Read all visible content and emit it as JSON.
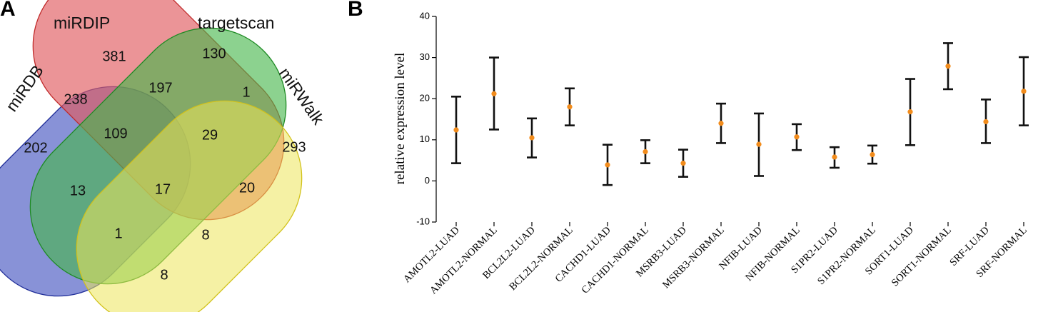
{
  "panels": {
    "a_label": "A",
    "b_label": "B"
  },
  "venn": {
    "sets": [
      {
        "name": "miRDB",
        "color": "#4f5fc4"
      },
      {
        "name": "miRDIP",
        "color": "#e05a60"
      },
      {
        "name": "targetscan",
        "color": "#45b64a"
      },
      {
        "name": "miRWalk",
        "color": "#ede65a"
      }
    ],
    "regions": [
      {
        "sets": "miRDIP",
        "count": "381"
      },
      {
        "sets": "targetscan",
        "count": "130"
      },
      {
        "sets": "miRDB+miRDIP",
        "count": "238"
      },
      {
        "sets": "miRDIP+targetscan",
        "count": "197"
      },
      {
        "sets": "targetscan+miRWalk",
        "count": "1"
      },
      {
        "sets": "miRDB",
        "count": "202"
      },
      {
        "sets": "miRDB+miRDIP+targetscan",
        "count": "109"
      },
      {
        "sets": "miRDIP+targetscan+miRWalk",
        "count": "29"
      },
      {
        "sets": "miRWalk",
        "count": "293"
      },
      {
        "sets": "miRDB+targetscan",
        "count": "13"
      },
      {
        "sets": "miRDB+miRDIP+targetscan+miRWalk",
        "count": "17"
      },
      {
        "sets": "miRDIP+miRWalk",
        "count": "20"
      },
      {
        "sets": "miRDB+targetscan+miRWalk",
        "count": "1"
      },
      {
        "sets": "miRDB+miRDIP+miRWalk",
        "count": "8"
      },
      {
        "sets": "miRDB+miRWalk",
        "count": "8"
      }
    ]
  },
  "chart_data": {
    "type": "scatter",
    "title": "",
    "xlabel": "",
    "ylabel": "relative expression level",
    "ylim": [
      -10,
      40
    ],
    "yticks": [
      -10,
      0,
      10,
      20,
      30,
      40
    ],
    "grid": false,
    "marker_color": "#f28c1c",
    "errorbar_color": "#111111",
    "categories": [
      "AMOTL2-LUAD",
      "AMOTL2-NORMAL",
      "BCL2L2-LUAD",
      "BCL2L2-NORMAL",
      "CACHD1-LUAD",
      "CACHD1-NORMAL",
      "MSRB3-LUAD",
      "MSRB3-NORMAL",
      "NFIB-LUAD",
      "NFIB-NORMAL",
      "S1PR2-LUAD",
      "S1PR2-NORMAL",
      "SORT1-LUAD",
      "SORT1-NORMAL",
      "SRF-LUAD",
      "SRF-NORMAL"
    ],
    "values": [
      12.4,
      21.2,
      10.5,
      18.0,
      3.9,
      7.1,
      4.3,
      14.0,
      8.9,
      10.7,
      5.8,
      6.4,
      16.8,
      27.9,
      14.4,
      21.8
    ],
    "lower": [
      4.3,
      12.5,
      5.7,
      13.5,
      -1.0,
      4.3,
      1.0,
      9.2,
      1.2,
      7.5,
      3.2,
      4.2,
      8.7,
      22.3,
      9.2,
      13.5
    ],
    "upper": [
      20.5,
      30.0,
      15.2,
      22.5,
      8.8,
      9.9,
      7.6,
      18.8,
      16.4,
      13.8,
      8.2,
      8.6,
      24.8,
      33.5,
      19.8,
      30.1
    ]
  }
}
